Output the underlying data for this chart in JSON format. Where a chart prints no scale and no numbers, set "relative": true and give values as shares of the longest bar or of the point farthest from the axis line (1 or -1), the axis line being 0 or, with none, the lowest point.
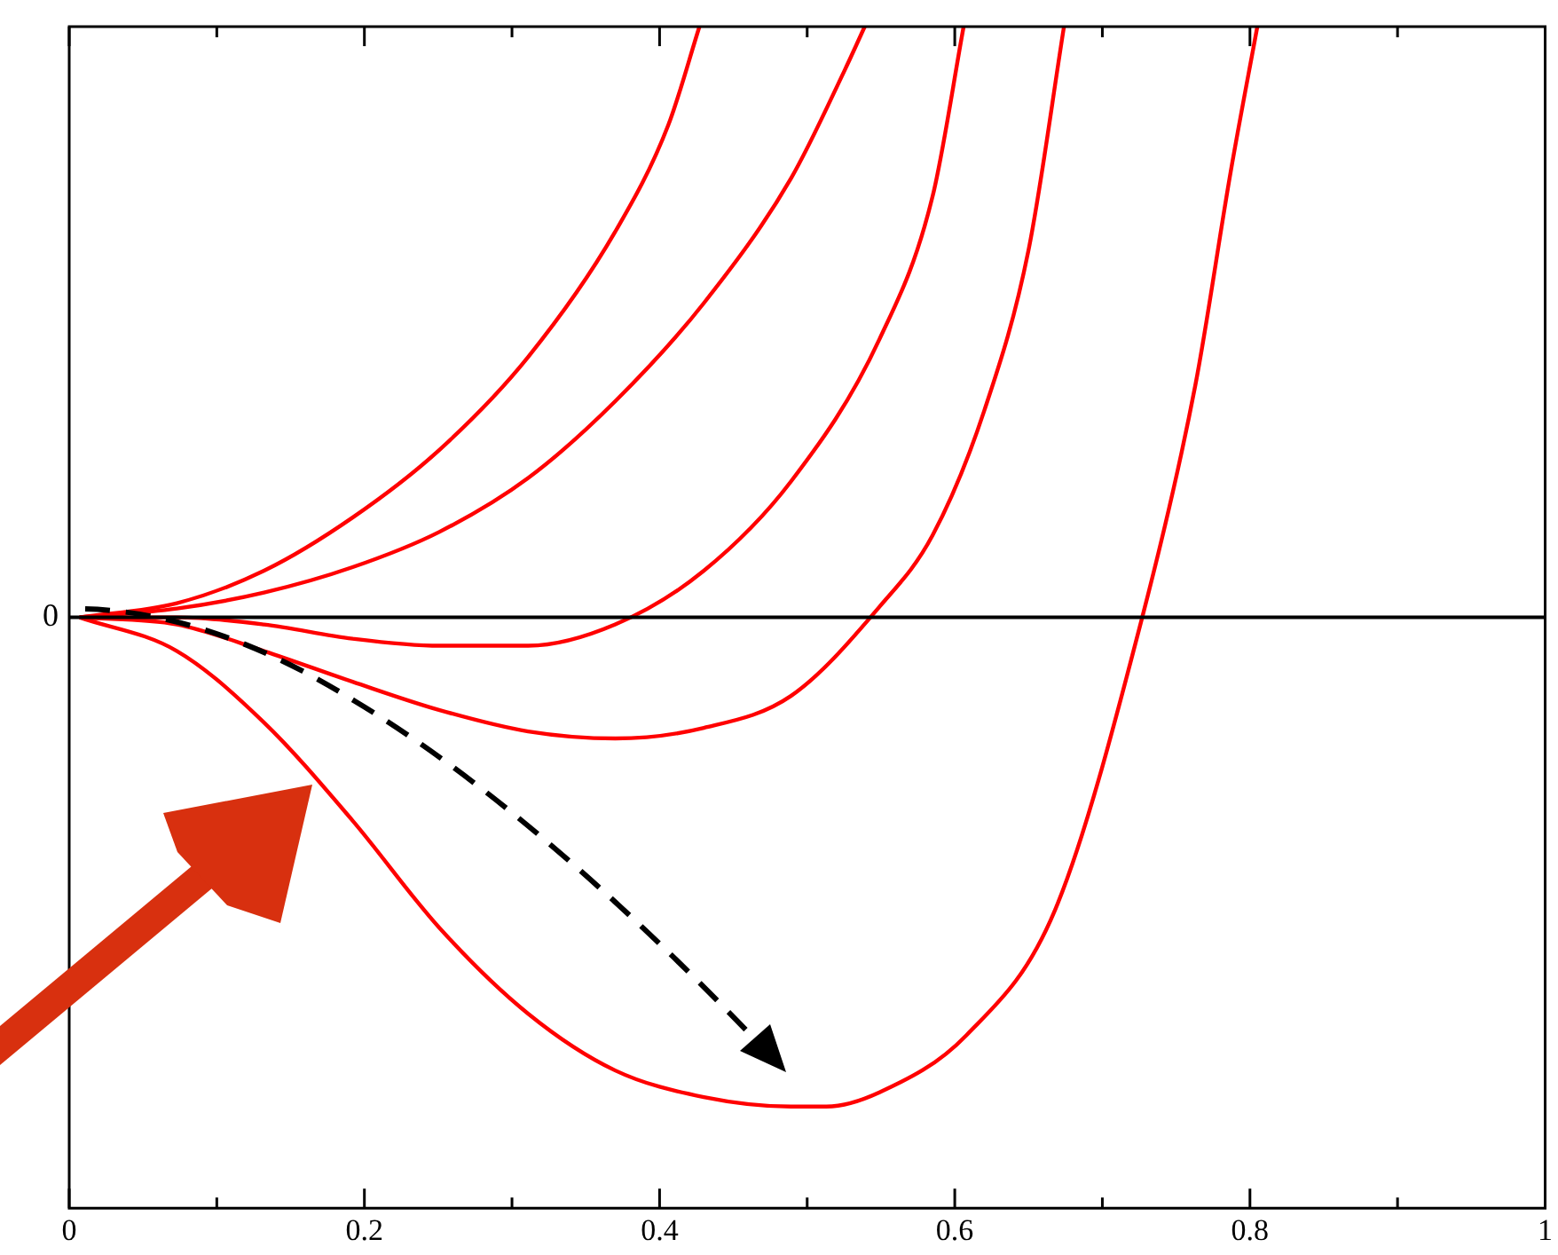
{
  "chart_data": {
    "type": "line",
    "relative": true,
    "xlim": [
      0,
      1
    ],
    "xticks": [
      0,
      {
        "value": 0.1,
        "label": null
      },
      0.2,
      {
        "value": 0.3,
        "label": null
      },
      0.4,
      {
        "value": 0.5,
        "label": null
      },
      0.6,
      {
        "value": 0.7,
        "label": null
      },
      0.8,
      {
        "value": 0.9,
        "label": null
      },
      1
    ],
    "grid": false,
    "legend": false,
    "marker": "none",
    "line_style": "solid",
    "ref_lines": [
      {
        "axis": "y",
        "value": 0,
        "label": "0",
        "color": "#000000"
      }
    ],
    "series": [
      {
        "color": "#ff0000",
        "x": [
          0.007,
          0.073,
          0.132,
          0.192,
          0.251,
          0.311,
          0.37,
          0.406,
          0.427
        ],
        "values": [
          0,
          0.024,
          0.079,
          0.169,
          0.284,
          0.441,
          0.653,
          0.834,
          1
        ]
      },
      {
        "color": "#ff0000",
        "x": [
          0.007,
          0.073,
          0.132,
          0.192,
          0.251,
          0.311,
          0.37,
          0.43,
          0.489,
          0.525,
          0.539
        ],
        "values": [
          0,
          0.015,
          0.042,
          0.085,
          0.145,
          0.236,
          0.366,
          0.532,
          0.743,
          0.924,
          1
        ]
      },
      {
        "color": "#ff0000",
        "x": [
          0.007,
          0.073,
          0.132,
          0.192,
          0.251,
          0.311,
          0.37,
          0.43,
          0.489,
          0.549,
          0.585,
          0.606
        ],
        "values": [
          0,
          0,
          -0.012,
          -0.036,
          -0.048,
          -0.048,
          -0.012,
          0.079,
          0.23,
          0.471,
          0.713,
          1
        ]
      },
      {
        "color": "#ff0000",
        "x": [
          0.007,
          0.073,
          0.132,
          0.192,
          0.251,
          0.311,
          0.37,
          0.43,
          0.489,
          0.549,
          0.585,
          0.62,
          0.65,
          0.674
        ],
        "values": [
          0,
          -0.012,
          -0.057,
          -0.109,
          -0.157,
          -0.193,
          -0.205,
          -0.187,
          -0.133,
          0.018,
          0.139,
          0.35,
          0.622,
          1
        ]
      },
      {
        "color": "#ff0000",
        "x": [
          0.007,
          0.073,
          0.132,
          0.192,
          0.251,
          0.311,
          0.37,
          0.43,
          0.489,
          0.513,
          0.549,
          0.608,
          0.668,
          0.727,
          0.763,
          0.787,
          0.805
        ],
        "values": [
          0,
          -0.057,
          -0.178,
          -0.344,
          -0.526,
          -0.671,
          -0.767,
          -0.812,
          -0.828,
          -0.828,
          -0.804,
          -0.707,
          -0.495,
          0,
          0.393,
          0.755,
          1
        ]
      }
    ]
  }
}
